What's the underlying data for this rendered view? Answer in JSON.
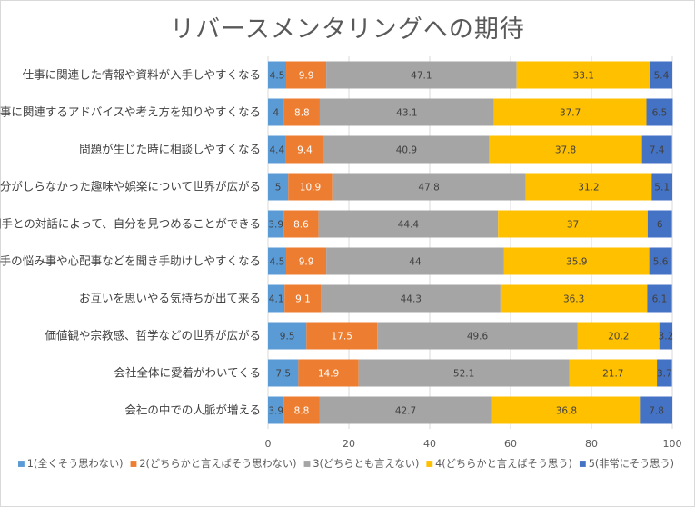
{
  "chart_data": {
    "type": "bar",
    "orientation": "horizontal",
    "stacked": true,
    "title": "リバースメンタリングへの期待",
    "categories": [
      "仕事に関連した情報や資料が入手しやすくなる",
      "仕事に関連するアドバイスや考え方を知りやすくなる",
      "問題が生じた時に相談しやすくなる",
      "自分がしらなかった趣味や娯楽について世界が広がる",
      "相手との対話によって、自分を見つめることができる",
      "相手の悩み事や心配事などを聞き手助けしやすくなる",
      "お互いを思いやる気持ちが出て来る",
      "価値観や宗教感、哲学などの世界が広がる",
      "会社全体に愛着がわいてくる",
      "会社の中での人脈が増える"
    ],
    "series": [
      {
        "name": "1(全くそう思わない)",
        "color": "#5b9bd5",
        "values": [
          4.5,
          4,
          4.4,
          5,
          3.9,
          4.5,
          4.1,
          9.5,
          7.5,
          3.9
        ]
      },
      {
        "name": "2(どちらかと言えばそう思わない)",
        "color": "#ed7d31",
        "values": [
          9.9,
          8.8,
          9.4,
          10.9,
          8.6,
          9.9,
          9.1,
          17.5,
          14.9,
          8.8
        ]
      },
      {
        "name": "3(どちらとも言えない)",
        "color": "#a5a5a5",
        "values": [
          47.1,
          43.1,
          40.9,
          47.8,
          44.4,
          44,
          44.3,
          49.6,
          52.1,
          42.7
        ]
      },
      {
        "name": "4(どちらかと言えばそう思う)",
        "color": "#ffc000",
        "values": [
          33.1,
          37.7,
          37.8,
          31.2,
          37,
          35.9,
          36.3,
          20.2,
          21.7,
          36.8
        ]
      },
      {
        "name": "5(非常にそう思う)",
        "color": "#4472c4",
        "values": [
          5.4,
          6.5,
          7.4,
          5.1,
          6,
          5.6,
          6.1,
          3.2,
          3.7,
          7.8
        ]
      }
    ],
    "xlim": [
      0,
      100
    ],
    "xticks": [
      0,
      20,
      40,
      60,
      80,
      100
    ],
    "grid": true,
    "legend_position": "bottom"
  }
}
